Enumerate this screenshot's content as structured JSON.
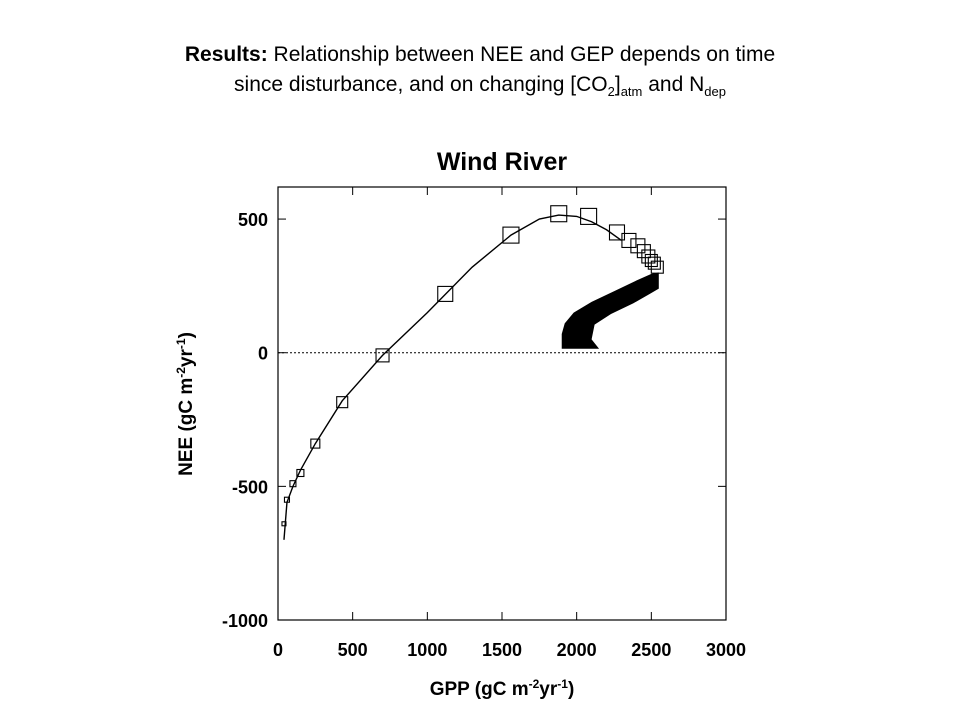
{
  "slide": {
    "heading_bold": "Results:",
    "heading_line1": "Relationship between NEE and GEP depends on time",
    "heading_line2_a": "since disturbance, and on changing [CO",
    "heading_line2_sub1": "2",
    "heading_line2_b": "]",
    "heading_line2_sub2": "atm",
    "heading_line2_c": " and N",
    "heading_line2_sub3": "dep"
  },
  "chart_data": {
    "type": "scatter",
    "title": "Wind River",
    "xlabel": "GPP (gC m",
    "xlabel_sup": "-2",
    "xlabel_mid": "yr",
    "xlabel_sup2": "-1",
    "xlabel_end": ")",
    "ylabel": "NEE (gC m",
    "ylabel_sup": "-2",
    "ylabel_mid": "yr",
    "ylabel_sup2": "-1",
    "ylabel_end": ")",
    "xlim": [
      0,
      3000
    ],
    "ylim": [
      -1000,
      620
    ],
    "xticks": [
      "0",
      "500",
      "1000",
      "1500",
      "2000",
      "2500",
      "3000"
    ],
    "yticks": [
      "500",
      "0",
      "-500",
      "-1000"
    ],
    "zero_line": "dotted",
    "grid": false,
    "curve": {
      "x": [
        40,
        60,
        100,
        150,
        250,
        430,
        700,
        1000,
        1300,
        1560,
        1750,
        1880,
        2000,
        2100,
        2200,
        2300
      ],
      "y": [
        -700,
        -560,
        -500,
        -440,
        -340,
        -180,
        -10,
        150,
        320,
        440,
        500,
        515,
        510,
        490,
        460,
        420
      ]
    },
    "markers": {
      "x": [
        40,
        60,
        100,
        150,
        250,
        430,
        700,
        1120,
        1560,
        1880,
        2080,
        2270,
        2350,
        2410,
        2450,
        2480,
        2500,
        2520,
        2540
      ],
      "y": [
        -640,
        -550,
        -490,
        -450,
        -340,
        -185,
        -10,
        220,
        440,
        520,
        510,
        450,
        420,
        400,
        380,
        360,
        345,
        335,
        320
      ],
      "size": [
        4,
        5,
        6,
        7,
        9,
        11,
        13,
        15,
        16,
        16,
        16,
        15,
        14,
        14,
        13,
        13,
        12,
        12,
        12
      ]
    },
    "dense_band": {
      "x": [
        1900,
        1900,
        1920,
        1980,
        2100,
        2250,
        2400,
        2500,
        2550,
        2550,
        2490,
        2380,
        2230,
        2120,
        2100,
        2150
      ],
      "y": [
        15,
        70,
        110,
        150,
        190,
        230,
        270,
        295,
        300,
        240,
        220,
        185,
        145,
        105,
        50,
        15
      ]
    }
  }
}
